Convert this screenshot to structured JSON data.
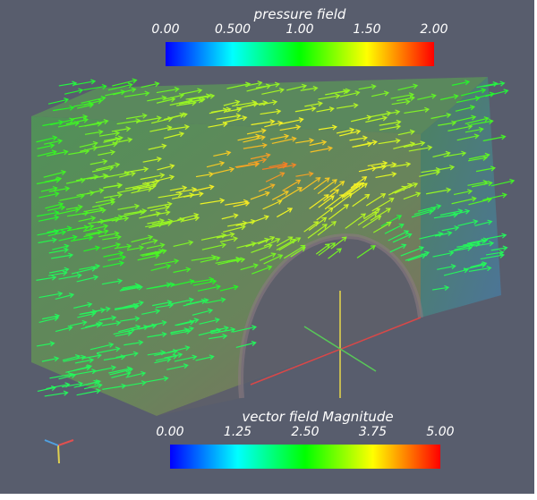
{
  "legends": [
    {
      "title": "pressure field",
      "ticks": [
        "0.00",
        "0.500",
        "1.00",
        "1.50",
        "2.00"
      ]
    },
    {
      "title": "vector field Magnitude",
      "ticks": [
        "0.00",
        "1.25",
        "2.50",
        "3.75",
        "5.00"
      ]
    }
  ]
}
